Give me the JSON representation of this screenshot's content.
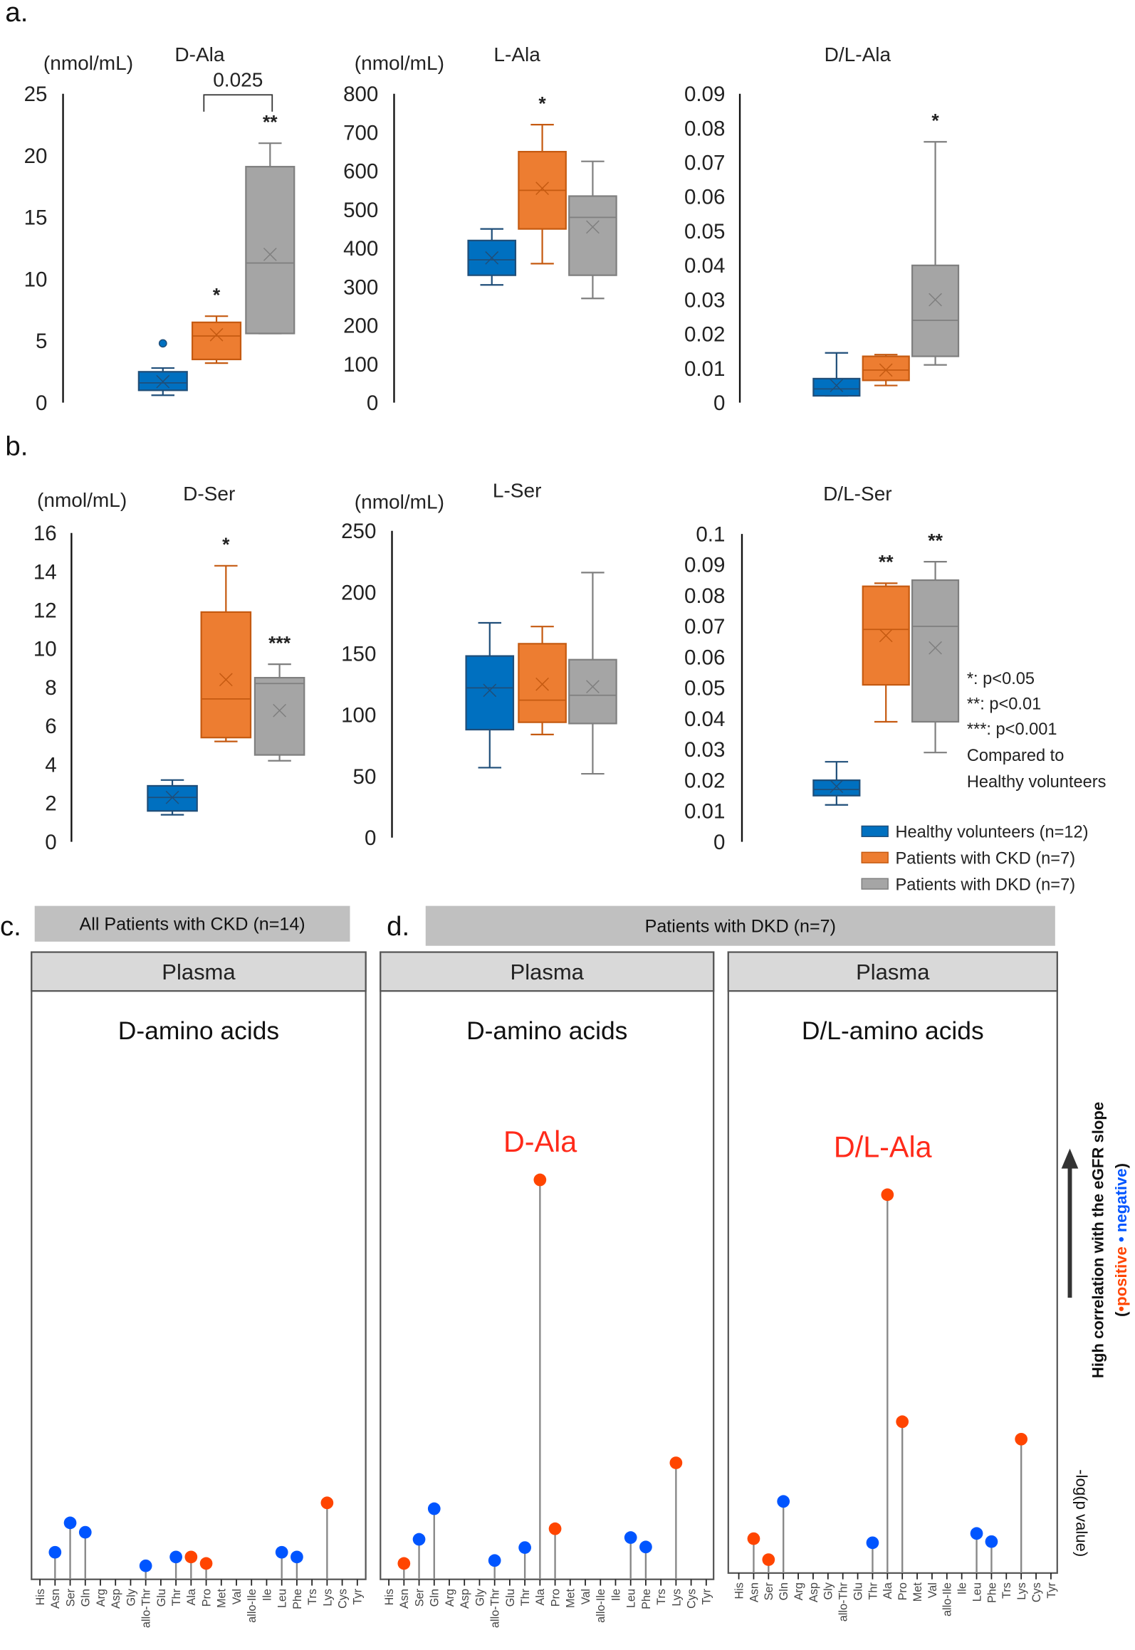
{
  "figure": {
    "panel_labels": [
      "a.",
      "b.",
      "c.",
      "d."
    ],
    "colors": {
      "healthy": "#0070c0",
      "ckd": "#ed7d31",
      "dkd": "#a5a5a5",
      "positive": "#ff4500",
      "negative": "#0055ff",
      "highlight": "#ff2a1a"
    },
    "legend": [
      "Healthy volunteers (n=12)",
      "Patients with CKD (n=7)",
      "Patients with DKD (n=7)"
    ],
    "significance": [
      "*: p<0.05",
      "**: p<0.01",
      "***: p<0.001",
      "Compared to",
      "Healthy volunteers"
    ],
    "side_label": "High correlation with the eGFR slope",
    "side_sub_open": "(",
    "side_positive": "•positive",
    "side_negative": " • negative",
    "side_sub_close": ")",
    "side_axis": "-log(p value)"
  },
  "chart_data": [
    {
      "type": "box",
      "panel": "a",
      "title": "D-Ala",
      "ylabel": "(nmol/mL)",
      "ylim": [
        0,
        25
      ],
      "ticks": [
        0,
        5,
        10,
        15,
        20,
        25
      ],
      "tick_labels": [
        "0",
        "5",
        "10",
        "15",
        "20",
        "25"
      ],
      "groups": [
        {
          "name": "Healthy volunteers (n=12)",
          "min": 0.6,
          "q1": 1.0,
          "median": 1.6,
          "q3": 2.5,
          "max": 2.8,
          "mean": 1.7,
          "outliers": [
            4.8
          ]
        },
        {
          "name": "Patients with CKD (n=7)",
          "min": 3.2,
          "q1": 3.5,
          "median": 5.4,
          "q3": 6.5,
          "max": 7.0,
          "mean": 5.5,
          "outliers": []
        },
        {
          "name": "Patients with DKD (n=7)",
          "min": 5.6,
          "q1": 5.6,
          "median": 11.3,
          "q3": 19.1,
          "max": 21.0,
          "mean": 12.0,
          "outliers": []
        }
      ],
      "stars": [
        "",
        "*",
        "**"
      ],
      "bracket": {
        "from": 1,
        "to": 2,
        "text": "0.025"
      }
    },
    {
      "type": "box",
      "panel": "a",
      "title": "L-Ala",
      "ylabel": "(nmol/mL)",
      "ylim": [
        0,
        800
      ],
      "ticks": [
        0,
        100,
        200,
        300,
        400,
        500,
        600,
        700,
        800
      ],
      "tick_labels": [
        "0",
        "100",
        "200",
        "300",
        "400",
        "500",
        "600",
        "700",
        "800"
      ],
      "groups": [
        {
          "name": "Healthy volunteers (n=12)",
          "min": 305,
          "q1": 330,
          "median": 370,
          "q3": 420,
          "max": 450,
          "mean": 375,
          "outliers": []
        },
        {
          "name": "Patients with CKD (n=7)",
          "min": 360,
          "q1": 450,
          "median": 550,
          "q3": 650,
          "max": 720,
          "mean": 555,
          "outliers": []
        },
        {
          "name": "Patients with DKD (n=7)",
          "min": 270,
          "q1": 330,
          "median": 480,
          "q3": 535,
          "max": 625,
          "mean": 455,
          "outliers": []
        }
      ],
      "stars": [
        "",
        "*",
        ""
      ]
    },
    {
      "type": "box",
      "panel": "a",
      "title": "D/L-Ala",
      "ylabel": "",
      "ylim": [
        0,
        0.09
      ],
      "ticks": [
        0,
        0.01,
        0.02,
        0.03,
        0.04,
        0.05,
        0.06,
        0.07,
        0.08,
        0.09
      ],
      "tick_labels": [
        "0",
        "0.01",
        "0.02",
        "0.03",
        "0.04",
        "0.05",
        "0.06",
        "0.07",
        "0.08",
        "0.09"
      ],
      "groups": [
        {
          "name": "Healthy volunteers (n=12)",
          "min": 0.002,
          "q1": 0.002,
          "median": 0.004,
          "q3": 0.007,
          "max": 0.0145,
          "mean": 0.005,
          "outliers": []
        },
        {
          "name": "Patients with CKD (n=7)",
          "min": 0.005,
          "q1": 0.0065,
          "median": 0.0095,
          "q3": 0.0135,
          "max": 0.014,
          "mean": 0.0095,
          "outliers": []
        },
        {
          "name": "Patients with DKD (n=7)",
          "min": 0.011,
          "q1": 0.0135,
          "median": 0.024,
          "q3": 0.04,
          "max": 0.076,
          "mean": 0.03,
          "outliers": []
        }
      ],
      "stars": [
        "",
        "",
        "*"
      ]
    },
    {
      "type": "box",
      "panel": "b",
      "title": "D-Ser",
      "ylabel": "(nmol/mL)",
      "ylim": [
        0,
        16
      ],
      "ticks": [
        0,
        2,
        4,
        6,
        8,
        10,
        12,
        14,
        16
      ],
      "tick_labels": [
        "0",
        "2",
        "4",
        "6",
        "8",
        "10",
        "12",
        "14",
        "16"
      ],
      "groups": [
        {
          "name": "Healthy volunteers (n=12)",
          "min": 1.4,
          "q1": 1.6,
          "median": 2.3,
          "q3": 2.9,
          "max": 3.2,
          "mean": 2.3,
          "outliers": []
        },
        {
          "name": "Patients with CKD (n=7)",
          "min": 5.2,
          "q1": 5.4,
          "median": 7.4,
          "q3": 11.9,
          "max": 14.3,
          "mean": 8.4,
          "outliers": []
        },
        {
          "name": "Patients with DKD (n=7)",
          "min": 4.2,
          "q1": 4.5,
          "median": 8.2,
          "q3": 8.5,
          "max": 9.2,
          "mean": 6.8,
          "outliers": []
        }
      ],
      "stars": [
        "",
        "*",
        "***"
      ]
    },
    {
      "type": "box",
      "panel": "b",
      "title": "L-Ser",
      "ylabel": "(nmol/mL)",
      "ylim": [
        0,
        250
      ],
      "ticks": [
        0,
        50,
        100,
        150,
        200,
        250
      ],
      "tick_labels": [
        "0",
        "50",
        "100",
        "150",
        "200",
        "250"
      ],
      "groups": [
        {
          "name": "Healthy volunteers (n=12)",
          "min": 57,
          "q1": 88,
          "median": 122,
          "q3": 148,
          "max": 175,
          "mean": 120,
          "outliers": []
        },
        {
          "name": "Patients with CKD (n=7)",
          "min": 84,
          "q1": 94,
          "median": 112,
          "q3": 158,
          "max": 172,
          "mean": 125,
          "outliers": []
        },
        {
          "name": "Patients with DKD (n=7)",
          "min": 52,
          "q1": 93,
          "median": 116,
          "q3": 145,
          "max": 216,
          "mean": 123,
          "outliers": []
        }
      ],
      "stars": [
        "",
        "",
        ""
      ]
    },
    {
      "type": "box",
      "panel": "b",
      "title": "D/L-Ser",
      "ylabel": "",
      "ylim": [
        0,
        0.1
      ],
      "ticks": [
        0,
        0.01,
        0.02,
        0.03,
        0.04,
        0.05,
        0.06,
        0.07,
        0.08,
        0.09,
        0.1
      ],
      "tick_labels": [
        "0",
        "0.01",
        "0.02",
        "0.03",
        "0.04",
        "0.05",
        "0.06",
        "0.07",
        "0.08",
        "0.09",
        "0.1"
      ],
      "groups": [
        {
          "name": "Healthy volunteers (n=12)",
          "min": 0.012,
          "q1": 0.015,
          "median": 0.017,
          "q3": 0.02,
          "max": 0.026,
          "mean": 0.018,
          "outliers": []
        },
        {
          "name": "Patients with CKD (n=7)",
          "min": 0.039,
          "q1": 0.051,
          "median": 0.069,
          "q3": 0.083,
          "max": 0.084,
          "mean": 0.067,
          "outliers": []
        },
        {
          "name": "Patients with DKD (n=7)",
          "min": 0.029,
          "q1": 0.039,
          "median": 0.07,
          "q3": 0.085,
          "max": 0.091,
          "mean": 0.063,
          "outliers": []
        }
      ],
      "stars": [
        "",
        "**",
        "**"
      ]
    },
    {
      "type": "lollipop",
      "panel": "c",
      "header": "All Patients with CKD (n=14)",
      "subheader": "Plasma",
      "title": "D-amino acids",
      "ylabel": "-log(p value) (relative)",
      "ylim": [
        0,
        100
      ],
      "categories": [
        "His",
        "Asn",
        "Ser",
        "Gln",
        "Arg",
        "Asp",
        "Gly",
        "allo-Thr",
        "Glu",
        "Thr",
        "Ala",
        "Pro",
        "Met",
        "Val",
        "allo-Ile",
        "Ile",
        "Leu",
        "Phe",
        "Trs",
        "Lys",
        "Cys",
        "Tyr"
      ],
      "points": [
        {
          "cat": "Asn",
          "value": 4.6,
          "sign": "negative"
        },
        {
          "cat": "Ser",
          "value": 9.6,
          "sign": "negative"
        },
        {
          "cat": "Gln",
          "value": 8.0,
          "sign": "negative"
        },
        {
          "cat": "allo-Thr",
          "value": 2.3,
          "sign": "negative"
        },
        {
          "cat": "Thr",
          "value": 3.8,
          "sign": "negative"
        },
        {
          "cat": "Ala",
          "value": 3.8,
          "sign": "positive"
        },
        {
          "cat": "Pro",
          "value": 2.7,
          "sign": "positive"
        },
        {
          "cat": "Leu",
          "value": 4.6,
          "sign": "negative"
        },
        {
          "cat": "Phe",
          "value": 3.8,
          "sign": "negative"
        },
        {
          "cat": "Lys",
          "value": 13.0,
          "sign": "positive"
        }
      ],
      "highlight": ""
    },
    {
      "type": "lollipop",
      "panel": "d",
      "header": "Patients with DKD (n=7)",
      "subheader": "Plasma",
      "title": "D-amino acids",
      "ylabel": "-log(p value) (relative)",
      "ylim": [
        0,
        100
      ],
      "categories": [
        "His",
        "Asn",
        "Ser",
        "Gln",
        "Arg",
        "Asp",
        "Gly",
        "allo-Thr",
        "Glu",
        "Thr",
        "Ala",
        "Pro",
        "Met",
        "Val",
        "allo-Ile",
        "Ile",
        "Leu",
        "Phe",
        "Trs",
        "Lys",
        "Cys",
        "Tyr"
      ],
      "points": [
        {
          "cat": "Asn",
          "value": 2.7,
          "sign": "positive"
        },
        {
          "cat": "Ser",
          "value": 6.8,
          "sign": "negative"
        },
        {
          "cat": "Gln",
          "value": 12.0,
          "sign": "negative"
        },
        {
          "cat": "allo-Thr",
          "value": 3.2,
          "sign": "negative"
        },
        {
          "cat": "Thr",
          "value": 5.4,
          "sign": "negative"
        },
        {
          "cat": "Ala",
          "value": 67.9,
          "sign": "positive"
        },
        {
          "cat": "Pro",
          "value": 8.6,
          "sign": "positive"
        },
        {
          "cat": "Leu",
          "value": 7.1,
          "sign": "negative"
        },
        {
          "cat": "Phe",
          "value": 5.5,
          "sign": "negative"
        },
        {
          "cat": "Lys",
          "value": 19.8,
          "sign": "positive"
        }
      ],
      "highlight": "D-Ala"
    },
    {
      "type": "lollipop",
      "panel": "d",
      "header": "",
      "subheader": "Plasma",
      "title": "D/L-amino acids",
      "ylabel": "-log(p value) (relative)",
      "ylim": [
        0,
        100
      ],
      "categories": [
        "His",
        "Asn",
        "Ser",
        "Gln",
        "Arg",
        "Asp",
        "Gly",
        "allo-Thr",
        "Glu",
        "Thr",
        "Ala",
        "Pro",
        "Met",
        "Val",
        "allo-Ile",
        "Ile",
        "Leu",
        "Phe",
        "Trs",
        "Lys",
        "Cys",
        "Tyr"
      ],
      "points": [
        {
          "cat": "Asn",
          "value": 5.9,
          "sign": "positive"
        },
        {
          "cat": "Ser",
          "value": 2.3,
          "sign": "positive"
        },
        {
          "cat": "Gln",
          "value": 12.3,
          "sign": "negative"
        },
        {
          "cat": "Thr",
          "value": 5.2,
          "sign": "negative"
        },
        {
          "cat": "Ala",
          "value": 65.0,
          "sign": "positive"
        },
        {
          "cat": "Pro",
          "value": 26.0,
          "sign": "positive"
        },
        {
          "cat": "Leu",
          "value": 6.8,
          "sign": "negative"
        },
        {
          "cat": "Phe",
          "value": 5.4,
          "sign": "negative"
        },
        {
          "cat": "Lys",
          "value": 23.0,
          "sign": "positive"
        }
      ],
      "highlight": "D/L-Ala"
    }
  ]
}
